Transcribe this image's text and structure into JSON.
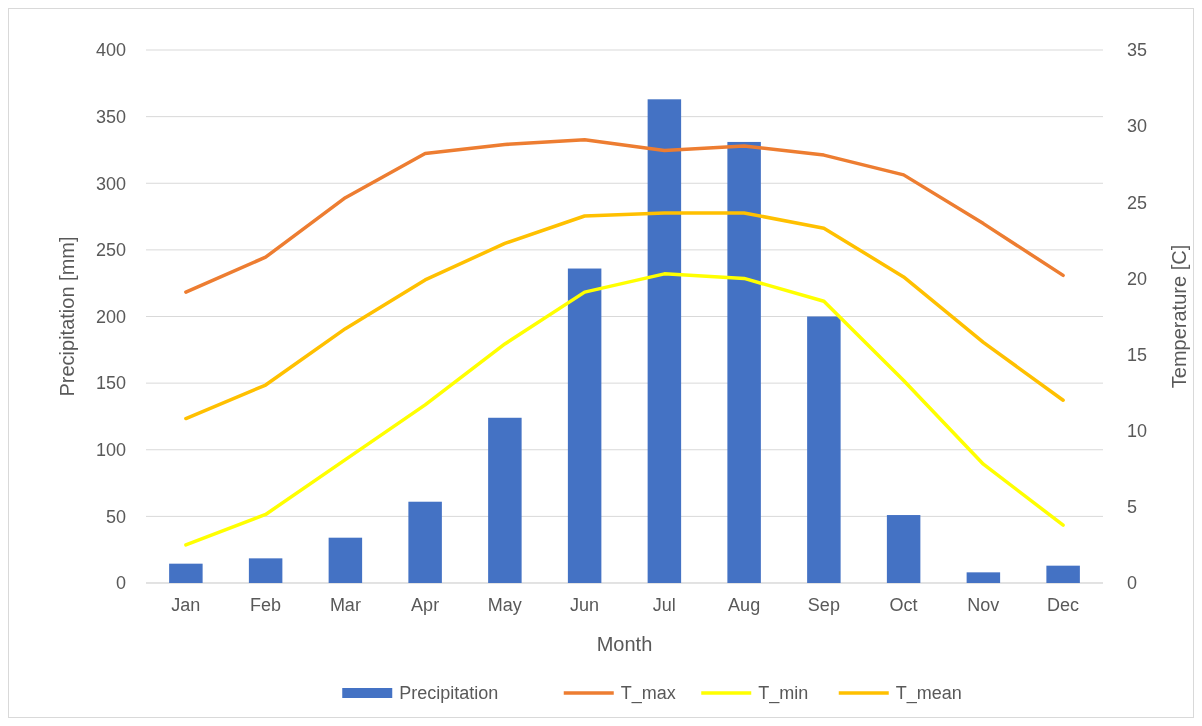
{
  "chart_data": {
    "type": "bar",
    "xlabel": "Month",
    "ylabel": "Precipitation [mm]",
    "y2label": "Temperature [C]",
    "categories": [
      "Jan",
      "Feb",
      "Mar",
      "Apr",
      "May",
      "Jun",
      "Jul",
      "Aug",
      "Sep",
      "Oct",
      "Nov",
      "Dec"
    ],
    "series": [
      {
        "name": "Precipitation",
        "color": "#4472c4",
        "values": [
          14.5,
          18.5,
          34,
          61,
          124,
          236,
          363,
          331,
          200,
          51,
          8,
          13
        ]
      },
      {
        "name": "T_max",
        "type": "line",
        "axis": "y2",
        "color": "#ed7d31",
        "values": [
          19.1,
          21.4,
          25.3,
          28.2,
          28.8,
          29.1,
          28.4,
          28.7,
          28.1,
          26.8,
          23.6,
          20.2
        ]
      },
      {
        "name": "T_min",
        "type": "line",
        "axis": "y2",
        "color": "#ffff00",
        "values": [
          2.5,
          4.5,
          8.1,
          11.7,
          15.7,
          19.1,
          20.3,
          20.0,
          18.5,
          13.3,
          7.8,
          3.8
        ]
      },
      {
        "name": "T_mean",
        "type": "line",
        "axis": "y2",
        "color": "#ffc000",
        "values": [
          10.8,
          13.0,
          16.7,
          19.9,
          22.3,
          24.1,
          24.3,
          24.3,
          23.3,
          20.1,
          15.8,
          12.0
        ]
      }
    ],
    "ylim": [
      0,
      400
    ],
    "yticks": [
      0,
      50,
      100,
      150,
      200,
      250,
      300,
      350,
      400
    ],
    "y2lim": [
      0,
      35
    ],
    "y2ticks": [
      0,
      5,
      10,
      15,
      20,
      25,
      30,
      35
    ],
    "grid": "y",
    "legend": "bottom"
  }
}
